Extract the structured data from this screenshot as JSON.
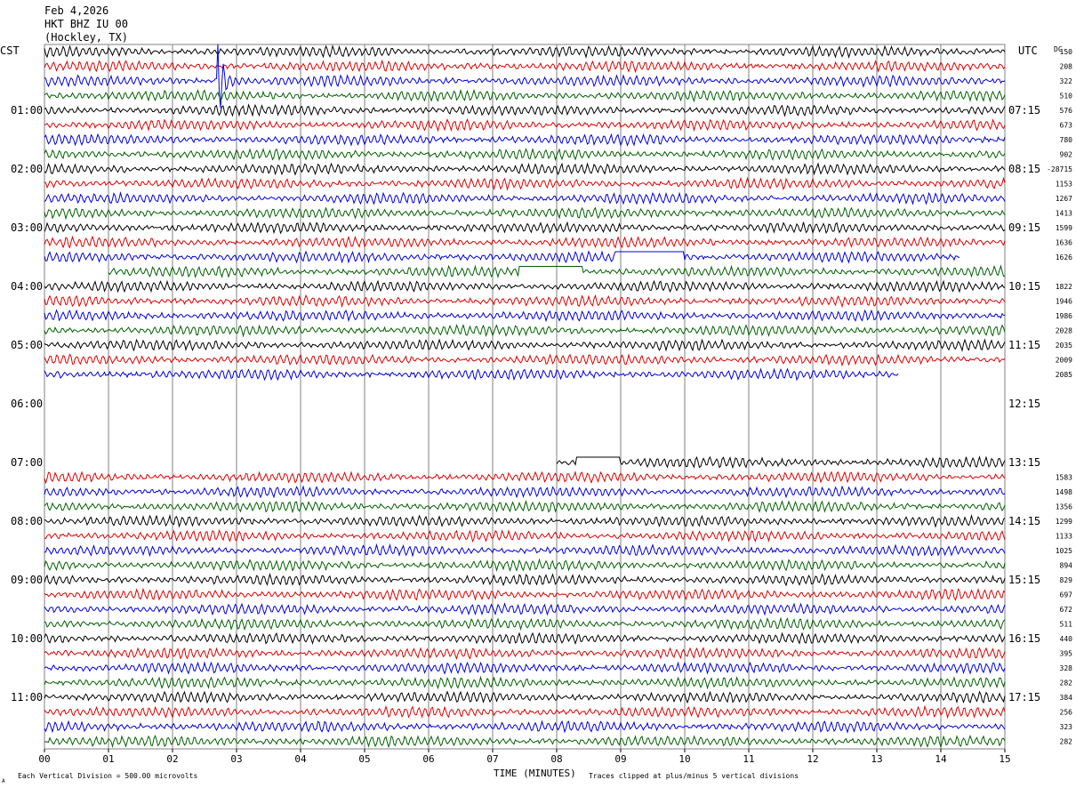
{
  "header": {
    "date": "Feb 4,2026",
    "station": "HKT BHZ IU 00",
    "location": "(Hockley, TX)"
  },
  "axes": {
    "left_label": "CST",
    "right_label": "UTC",
    "dc_label": "DC",
    "x_label": "TIME (MINUTES)",
    "x_ticks": [
      "00",
      "01",
      "02",
      "03",
      "04",
      "05",
      "06",
      "07",
      "08",
      "09",
      "10",
      "11",
      "12",
      "13",
      "14",
      "15"
    ],
    "left_hours": [
      "01:00",
      "02:00",
      "03:00",
      "04:00",
      "05:00",
      "06:00",
      "07:00",
      "08:00",
      "09:00",
      "10:00",
      "11:00"
    ],
    "right_hours": [
      "07:15",
      "08:15",
      "09:15",
      "10:15",
      "11:15",
      "12:15",
      "13:15",
      "14:15",
      "15:15",
      "16:15",
      "17:15"
    ]
  },
  "footer": {
    "scale_note": "Each Vertical Division =  500.00 microvolts",
    "clip_note": "Traces clipped at plus/minus 5 vertical divisions",
    "corner_mark": "A"
  },
  "colors": {
    "trace_cycle": [
      "#000000",
      "#e00000",
      "#0000e0",
      "#006000"
    ],
    "grid": "#808080",
    "text": "#000000",
    "background": "#ffffff"
  },
  "chart_data": {
    "type": "line",
    "subtype": "helicorder",
    "minutes_per_line": 15,
    "x_range_minutes": [
      0,
      15
    ],
    "lines_per_hour": 4,
    "total_lines": 48,
    "dc_offsets": [
      "150",
      "208",
      "322",
      "510",
      "576",
      "673",
      "780",
      "902",
      "-28715",
      "1153",
      "1267",
      "1413",
      "1599",
      "1636",
      "1626",
      "",
      "1822",
      "1946",
      "1986",
      "2028",
      "2035",
      "2009",
      "2085",
      "",
      "",
      "",
      "",
      "",
      "",
      "1583",
      "1498",
      "1356",
      "1299",
      "1133",
      "1025",
      "894",
      "829",
      "697",
      "672",
      "511",
      "440",
      "395",
      "328",
      "282",
      "384",
      "256",
      "323",
      "282"
    ],
    "gaps": [
      {
        "line": 15,
        "start_minute": 0,
        "end_minute": 1.0
      },
      {
        "line": 22,
        "start_minute": 13.35,
        "end_minute": 15
      },
      {
        "line": 23,
        "start_minute": 0,
        "end_minute": 15
      },
      {
        "line": 24,
        "start_minute": 0,
        "end_minute": 15
      },
      {
        "line": 25,
        "start_minute": 0,
        "end_minute": 15
      },
      {
        "line": 26,
        "start_minute": 0,
        "end_minute": 15
      },
      {
        "line": 27,
        "start_minute": 0,
        "end_minute": 15
      },
      {
        "line": 28,
        "start_minute": 0,
        "end_minute": 8.0
      },
      {
        "line": 14,
        "start_minute": 14.3,
        "end_minute": 15
      }
    ],
    "flat_segments": [
      {
        "line": 14,
        "start_minute": 8.9,
        "end_minute": 10.0
      },
      {
        "line": 15,
        "start_minute": 7.4,
        "end_minute": 8.4
      },
      {
        "line": 28,
        "start_minute": 8.3,
        "end_minute": 9.0
      }
    ],
    "events": [
      {
        "line": 2,
        "minute": 2.7,
        "description": "spike"
      }
    ]
  }
}
